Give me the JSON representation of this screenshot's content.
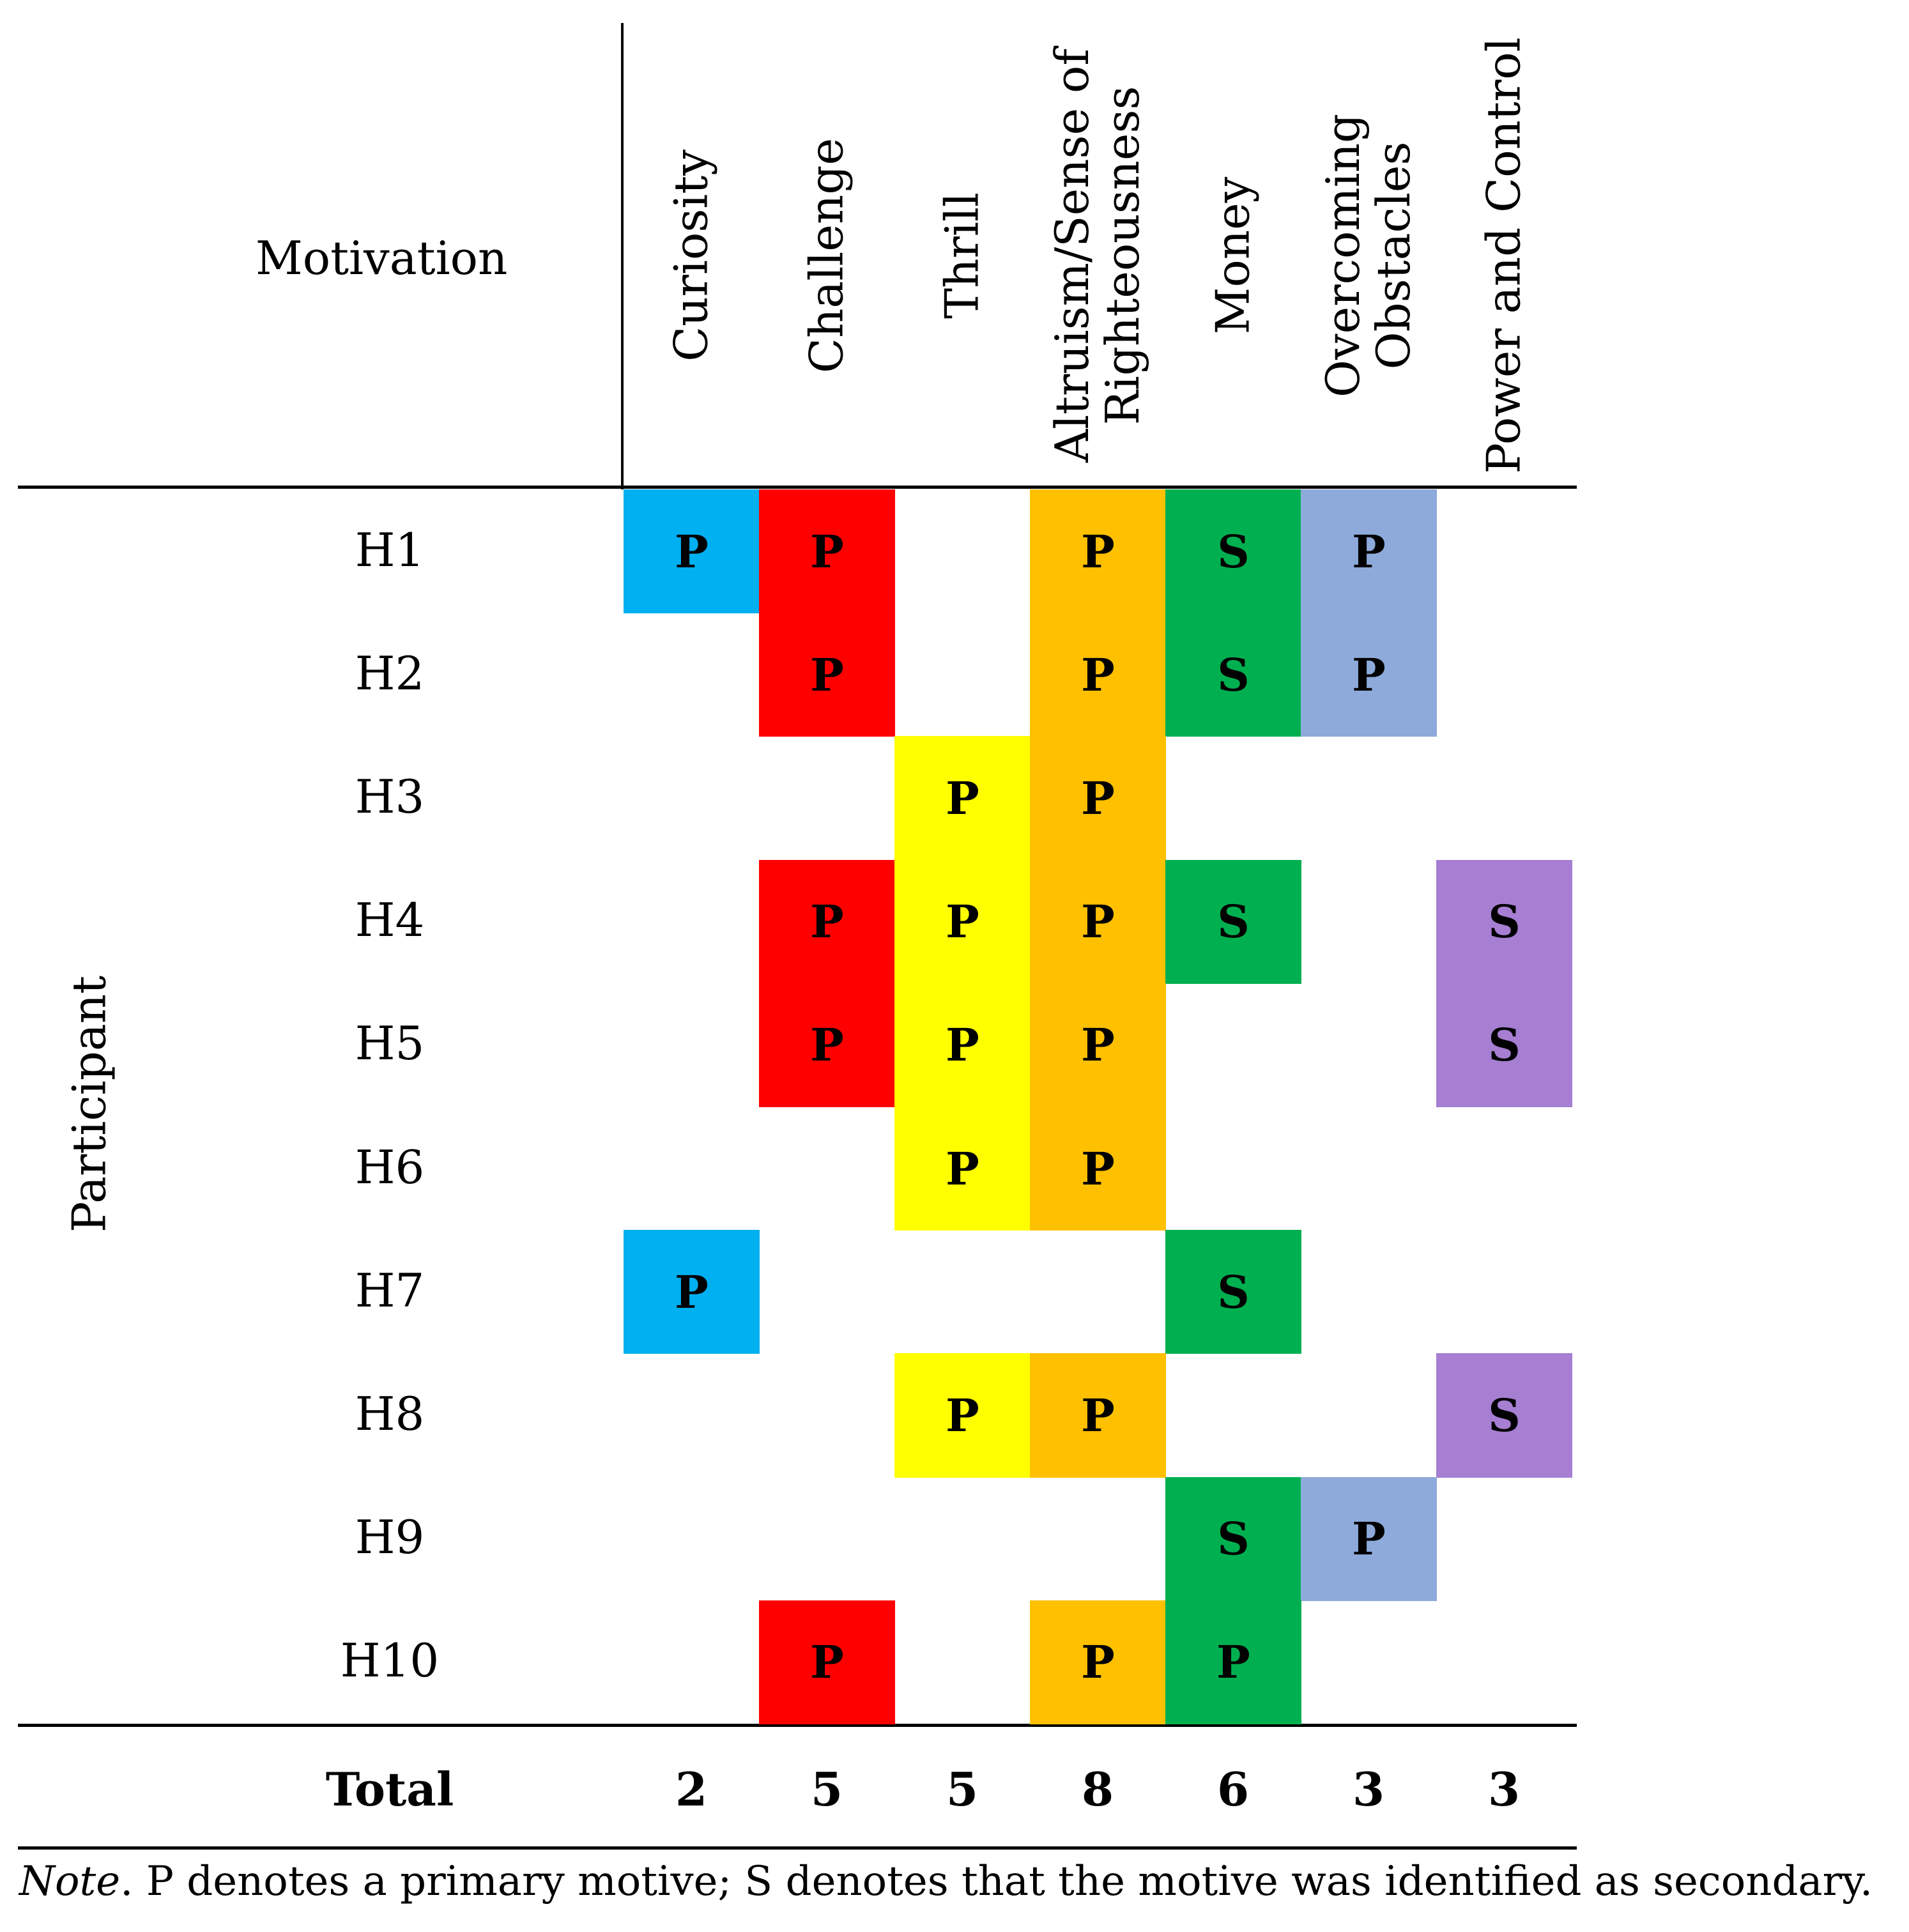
{
  "header": {
    "motivation_label": "Motivation",
    "participant_label": "Participant",
    "columns": [
      {
        "lines": [
          "Curiosity"
        ],
        "color": "#00b0f0"
      },
      {
        "lines": [
          "Challenge"
        ],
        "color": "#ff0000"
      },
      {
        "lines": [
          "Thrill"
        ],
        "color": "#ffff00"
      },
      {
        "lines": [
          "Altruism/Sense of",
          "Righteousness"
        ],
        "color": "#ffc000"
      },
      {
        "lines": [
          "Money"
        ],
        "color": "#00b050"
      },
      {
        "lines": [
          "Overcoming",
          "Obstacles"
        ],
        "color": "#8eaadb"
      },
      {
        "lines": [
          "Power and Control"
        ],
        "color": "#a67ed2"
      }
    ]
  },
  "rows": [
    {
      "label": "H1",
      "cells": [
        "P",
        "P",
        "",
        "P",
        "S",
        "P",
        ""
      ]
    },
    {
      "label": "H2",
      "cells": [
        "",
        "P",
        "",
        "P",
        "S",
        "P",
        ""
      ]
    },
    {
      "label": "H3",
      "cells": [
        "",
        "",
        "P",
        "P",
        "",
        "",
        ""
      ]
    },
    {
      "label": "H4",
      "cells": [
        "",
        "P",
        "P",
        "P",
        "S",
        "",
        "S"
      ]
    },
    {
      "label": "H5",
      "cells": [
        "",
        "P",
        "P",
        "P",
        "",
        "",
        "S"
      ]
    },
    {
      "label": "H6",
      "cells": [
        "",
        "",
        "P",
        "P",
        "",
        "",
        ""
      ]
    },
    {
      "label": "H7",
      "cells": [
        "P",
        "",
        "",
        "",
        "S",
        "",
        ""
      ]
    },
    {
      "label": "H8",
      "cells": [
        "",
        "",
        "P",
        "P",
        "",
        "",
        "S"
      ]
    },
    {
      "label": "H9",
      "cells": [
        "",
        "",
        "",
        "",
        "S",
        "P",
        ""
      ]
    },
    {
      "label": "H10",
      "cells": [
        "",
        "P",
        "",
        "P",
        "P",
        "",
        ""
      ]
    }
  ],
  "total": {
    "label": "Total",
    "values": [
      "2",
      "5",
      "5",
      "8",
      "6",
      "3",
      "3"
    ]
  },
  "note": {
    "lead": "Note",
    "text": ". P denotes a primary motive; S denotes that the motive was identified as secondary."
  }
}
